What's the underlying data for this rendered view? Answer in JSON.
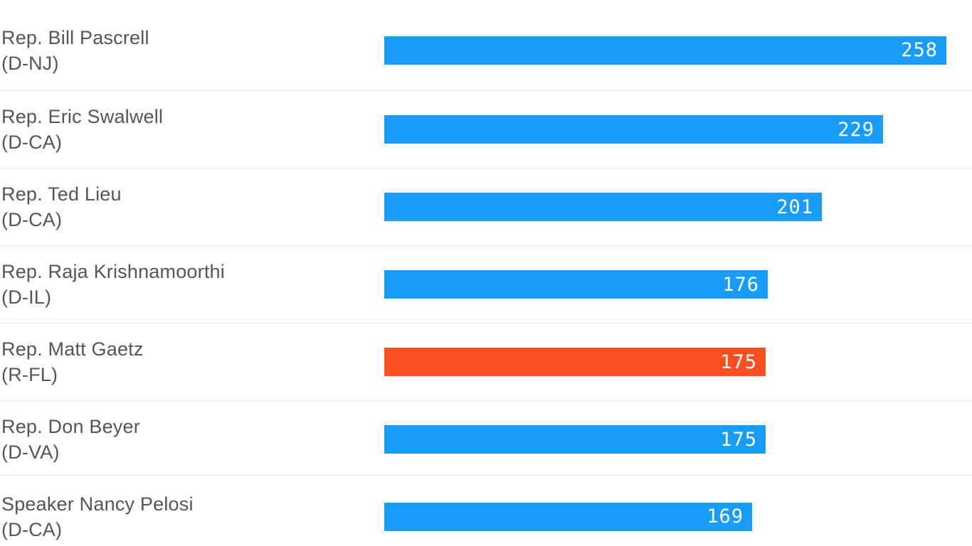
{
  "chart_data": {
    "type": "bar",
    "orientation": "horizontal",
    "categories": [
      "Rep. Bill Pascrell (D-NJ)",
      "Rep. Eric Swalwell (D-CA)",
      "Rep. Ted Lieu (D-CA)",
      "Rep. Raja Krishnamoorthi (D-IL)",
      "Rep. Matt Gaetz (R-FL)",
      "Rep. Don Beyer (D-VA)",
      "Speaker Nancy Pelosi (D-CA)"
    ],
    "values": [
      258,
      229,
      201,
      176,
      175,
      175,
      169
    ],
    "title": "",
    "xlabel": "",
    "ylabel": "",
    "xlim": [
      0,
      258
    ],
    "grid": false,
    "legend": false,
    "value_labels": "inside-end",
    "bars": [
      {
        "name": "Rep. Bill Pascrell",
        "party": "(D-NJ)",
        "value": 258,
        "value_label": "258",
        "color": "#189cfa"
      },
      {
        "name": "Rep. Eric Swalwell",
        "party": "(D-CA)",
        "value": 229,
        "value_label": "229",
        "color": "#189cfa"
      },
      {
        "name": "Rep. Ted Lieu",
        "party": "(D-CA)",
        "value": 201,
        "value_label": "201",
        "color": "#189cfa"
      },
      {
        "name": "Rep. Raja Krishnamoorthi",
        "party": "(D-IL)",
        "value": 176,
        "value_label": "176",
        "color": "#189cfa"
      },
      {
        "name": "Rep. Matt Gaetz",
        "party": "(R-FL)",
        "value": 175,
        "value_label": "175",
        "color": "#fc4f1f"
      },
      {
        "name": "Rep. Don Beyer",
        "party": "(D-VA)",
        "value": 175,
        "value_label": "175",
        "color": "#189cfa"
      },
      {
        "name": "Speaker Nancy Pelosi",
        "party": "(D-CA)",
        "value": 169,
        "value_label": "169",
        "color": "#189cfa"
      }
    ],
    "colors": {
      "democrat_bar": "#189cfa",
      "republican_bar": "#fc4f1f",
      "label_text": "#545559",
      "value_text": "#ffffff",
      "divider": "#e9e9e9",
      "background": "#ffffff"
    }
  }
}
